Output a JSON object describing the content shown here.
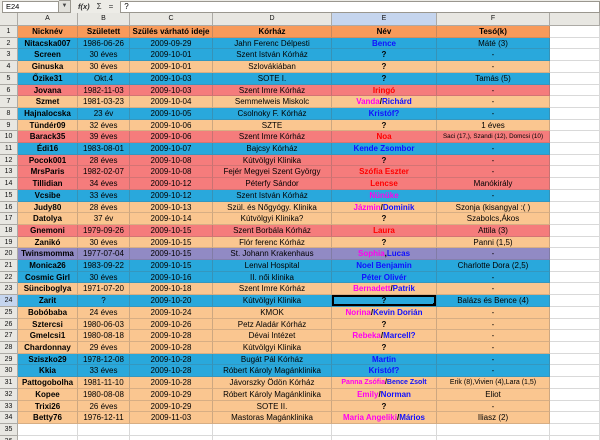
{
  "formula_bar": {
    "cell_ref": "E24",
    "fx": "f(x)",
    "sigma": "Σ",
    "equals": "=",
    "input": "?"
  },
  "grid": {
    "column_letters": [
      "A",
      "B",
      "C",
      "D",
      "E",
      "F"
    ],
    "selected_column": "E",
    "selected_row": 24,
    "visible_row_range": [
      1,
      36
    ],
    "empty_rows": [
      35,
      36
    ],
    "header_row": {
      "r": 1,
      "bg": "header",
      "labels": [
        "Nicknév",
        "Született",
        "Szülés várható ideje",
        "Kórház",
        "Név",
        "Tesó(k)"
      ]
    },
    "colors": {
      "header_bg": "#F89A5A",
      "blue": "#29A8DC",
      "tan": "#FAC690",
      "salmon": "#F57C7C",
      "purple": "#918AC4",
      "boy_text": "#1010FF",
      "girl_text": "#FF00F0",
      "red_text": "#FF0000"
    },
    "rows": [
      {
        "r": 2,
        "bg": "blue",
        "a": "Nitacska007",
        "b": "1986-06-26",
        "c": "2009-09-29",
        "d": "Jahn Ferenc Délpesti",
        "e": [
          [
            "Bence",
            "b"
          ]
        ],
        "f": "Máté (3)"
      },
      {
        "r": 3,
        "bg": "blue",
        "a": "Screen",
        "b": "30 éves",
        "c": "2009-10-01",
        "d": "Szent István Kórház",
        "e": [
          [
            "?",
            "k"
          ]
        ],
        "f": "-"
      },
      {
        "r": 4,
        "bg": "tan",
        "a": "Ginuska",
        "b": "30 éves",
        "c": "2009-10-01",
        "d": "Szlovákiában",
        "e": [
          [
            "?",
            "k"
          ]
        ],
        "f": "-"
      },
      {
        "r": 5,
        "bg": "blue",
        "a": "Őzike31",
        "b": "Okt.4",
        "c": "2009-10-03",
        "d": "SOTE I.",
        "e": [
          [
            "?",
            "k"
          ]
        ],
        "f": "Tamás (5)"
      },
      {
        "r": 6,
        "bg": "salmon",
        "a": "Jovana",
        "b": "1982-11-03",
        "c": "2009-10-03",
        "d": "Szent Imre Kórház",
        "e": [
          [
            "Iringó",
            "r"
          ]
        ],
        "f": "-"
      },
      {
        "r": 7,
        "bg": "tan",
        "a": "Szmet",
        "b": "1981-03-23",
        "c": "2009-10-04",
        "d": "Semmelweis Miskolc",
        "e": [
          [
            "Vanda",
            "g"
          ],
          [
            "/",
            "k"
          ],
          [
            "Richárd",
            "b"
          ]
        ],
        "f": "-"
      },
      {
        "r": 8,
        "bg": "blue",
        "a": "Hajnalocska",
        "b": "23 év",
        "c": "2009-10-05",
        "d": "Csolnoky F. Kórház",
        "e": [
          [
            "Kristóf?",
            "b"
          ]
        ],
        "f": "-"
      },
      {
        "r": 9,
        "bg": "tan",
        "a": "Tündér09",
        "b": "32 éves",
        "c": "2009-10-06",
        "d": "SZTE",
        "e": [
          [
            "?",
            "k"
          ]
        ],
        "f": "1 éves"
      },
      {
        "r": 10,
        "bg": "salmon",
        "a": "Barack35",
        "b": "39 éves",
        "c": "2009-10-06",
        "d": "Szent Imre Kórház",
        "e": [
          [
            "Noa",
            "r"
          ]
        ],
        "f": "Saci (17,), Szandi (12), Domcsi (10)",
        "fsmall": true
      },
      {
        "r": 11,
        "bg": "blue",
        "a": "Édi16",
        "b": "1983-08-01",
        "c": "2009-10-07",
        "d": "Bajcsy Kórház",
        "e": [
          [
            "Kende Zsombor",
            "b"
          ]
        ],
        "f": "-"
      },
      {
        "r": 12,
        "bg": "salmon",
        "a": "Pocok001",
        "b": "28 éves",
        "c": "2009-10-08",
        "d": "Kútvölgyi Klinika",
        "e": [
          [
            "?",
            "k"
          ]
        ],
        "f": "-"
      },
      {
        "r": 13,
        "bg": "salmon",
        "a": "MrsParis",
        "b": "1982-02-07",
        "c": "2009-10-08",
        "d": "Fejér Megyei Szent György",
        "e": [
          [
            "Szófia Eszter",
            "r"
          ]
        ],
        "f": "-"
      },
      {
        "r": 14,
        "bg": "salmon",
        "a": "Tillidian",
        "b": "34 éves",
        "c": "2009-10-12",
        "d": "Péterfy Sándor",
        "e": [
          [
            "Lencse",
            "r"
          ]
        ],
        "f": "Manókirály"
      },
      {
        "r": 15,
        "bg": "blue",
        "a": "Vcsibe",
        "b": "33 éves",
        "c": "2009-10-12",
        "d": "Szent István Kórház",
        "e": [
          [
            "Nünüke",
            "g"
          ]
        ],
        "f": "-"
      },
      {
        "r": 16,
        "bg": "tan",
        "a": "Judy80",
        "b": "28 éves",
        "c": "2009-10-13",
        "d": "Szül. és Nőgyógy. Klinika",
        "e": [
          [
            "Jázmin",
            "g"
          ],
          [
            "/",
            "k"
          ],
          [
            "Dominik",
            "b"
          ]
        ],
        "f": "Szonja (kisangyal :( )"
      },
      {
        "r": 17,
        "bg": "tan",
        "a": "Datolya",
        "b": "37 év",
        "c": "2009-10-14",
        "d": "Kútvölgyi Klinika?",
        "e": [
          [
            "?",
            "k"
          ]
        ],
        "f": "Szabolcs,Ákos"
      },
      {
        "r": 18,
        "bg": "salmon",
        "a": "Gnemoni",
        "b": "1979-09-26",
        "c": "2009-10-15",
        "d": "Szent Borbála Kórház",
        "e": [
          [
            "Laura",
            "r"
          ]
        ],
        "f": "Attila (3)"
      },
      {
        "r": 19,
        "bg": "tan",
        "a": "Zanikó",
        "b": "30 éves",
        "c": "2009-10-15",
        "d": "Flór ferenc Kórház",
        "e": [
          [
            "?",
            "k"
          ]
        ],
        "f": "Panni (1,5)"
      },
      {
        "r": 20,
        "bg": "purple",
        "a": "Twinsmomma",
        "b": "1977-07-04",
        "c": "2009-10-15",
        "d": "St. Johann Krakenhaus",
        "e": [
          [
            "Sophia",
            "g"
          ],
          [
            ",",
            "k"
          ],
          [
            "Lucas",
            "b"
          ]
        ],
        "f": "-"
      },
      {
        "r": 21,
        "bg": "blue",
        "a": "Monica26",
        "b": "1983-09-22",
        "c": "2009-10-15",
        "d": "Lenval Hospital",
        "e": [
          [
            "Noel Benjamin",
            "b"
          ]
        ],
        "f": "Charlotte Dora (2,5)"
      },
      {
        "r": 22,
        "bg": "blue",
        "a": "Cosmic Girl",
        "b": "30 éves",
        "c": "2009-10-16",
        "d": "II. női klinika",
        "e": [
          [
            "Péter Olivér",
            "b"
          ]
        ],
        "f": "-"
      },
      {
        "r": 23,
        "bg": "tan",
        "a": "Sünciboglya",
        "b": "1971-07-20",
        "c": "2009-10-18",
        "d": "Szent Imre Kórház",
        "e": [
          [
            "Bernadett",
            "g"
          ],
          [
            "/",
            "k"
          ],
          [
            "Patrik",
            "b"
          ]
        ],
        "f": "-"
      },
      {
        "r": 24,
        "bg": "blue",
        "a": "Zarit",
        "b": "?",
        "c": "2009-10-20",
        "d": "Kútvölgyi Klinika",
        "e": [
          [
            "?",
            "k"
          ]
        ],
        "f": "Balázs és Bence (4)",
        "selected": true
      },
      {
        "r": 25,
        "bg": "tan",
        "a": "Bobóbaba",
        "b": "24 éves",
        "c": "2009-10-24",
        "d": "KMOK",
        "e": [
          [
            "Norina",
            "g"
          ],
          [
            "/",
            "k"
          ],
          [
            "Kevin Dorián",
            "b"
          ]
        ],
        "f": "-"
      },
      {
        "r": 26,
        "bg": "tan",
        "a": "Sztercsi",
        "b": "1980-06-03",
        "c": "2009-10-26",
        "d": "Petz Aladár Kórház",
        "e": [
          [
            "?",
            "k"
          ]
        ],
        "f": "-"
      },
      {
        "r": 27,
        "bg": "tan",
        "a": "Gmelcsi1",
        "b": "1980-08-18",
        "c": "2009-10-28",
        "d": "Dévai Intézet",
        "e": [
          [
            "Rebeka",
            "g"
          ],
          [
            "/",
            "k"
          ],
          [
            "Marcell?",
            "b"
          ]
        ],
        "f": "-"
      },
      {
        "r": 28,
        "bg": "tan",
        "a": "Chardonnay",
        "b": "29 éves",
        "c": "2009-10-28",
        "d": "Kútvölgyi Klinika",
        "e": [
          [
            "?",
            "k"
          ]
        ],
        "f": "-"
      },
      {
        "r": 29,
        "bg": "blue",
        "a": "Sziszko29",
        "b": "1978-12-08",
        "c": "2009-10-28",
        "d": "Bugát Pál Kórház",
        "e": [
          [
            "Martin",
            "b"
          ]
        ],
        "f": "-"
      },
      {
        "r": 30,
        "bg": "blue",
        "a": "Kkia",
        "b": "33 éves",
        "c": "2009-10-28",
        "d": "Róbert Károly Magánklinika",
        "e": [
          [
            "Kristóf?",
            "b"
          ]
        ],
        "f": "-"
      },
      {
        "r": 31,
        "bg": "tan",
        "a": "Pattogobolha",
        "b": "1981-11-10",
        "c": "2009-10-28",
        "d": "Jávorszky Ödön Kórház",
        "e": [
          [
            "Panna Zsófia",
            "g"
          ],
          [
            "/",
            "k"
          ],
          [
            "Bence Zsolt",
            "b"
          ]
        ],
        "f": "Erik (8),Vivien (4),Lara (1,5)",
        "esmall": true,
        "fsmall2": true
      },
      {
        "r": 32,
        "bg": "tan",
        "a": "Kopee",
        "b": "1980-08-08",
        "c": "2009-10-29",
        "d": "Róbert Károly Magánklinika",
        "e": [
          [
            "Emily",
            "g"
          ],
          [
            "/",
            "k"
          ],
          [
            "Norman",
            "b"
          ]
        ],
        "f": "Eliot"
      },
      {
        "r": 33,
        "bg": "tan",
        "a": "Trixi26",
        "b": "26 éves",
        "c": "2009-10-29",
        "d": "SOTE II.",
        "e": [
          [
            "?",
            "k"
          ]
        ],
        "f": "-"
      },
      {
        "r": 34,
        "bg": "tan",
        "a": "Betty76",
        "b": "1976-12-11",
        "c": "2009-11-03",
        "d": "Mastoras Magánklinika",
        "e": [
          [
            "Maria Angeliki",
            "g"
          ],
          [
            "/",
            "k"
          ],
          [
            "Mários",
            "b"
          ]
        ],
        "f": "Iliasz (2)"
      }
    ]
  }
}
